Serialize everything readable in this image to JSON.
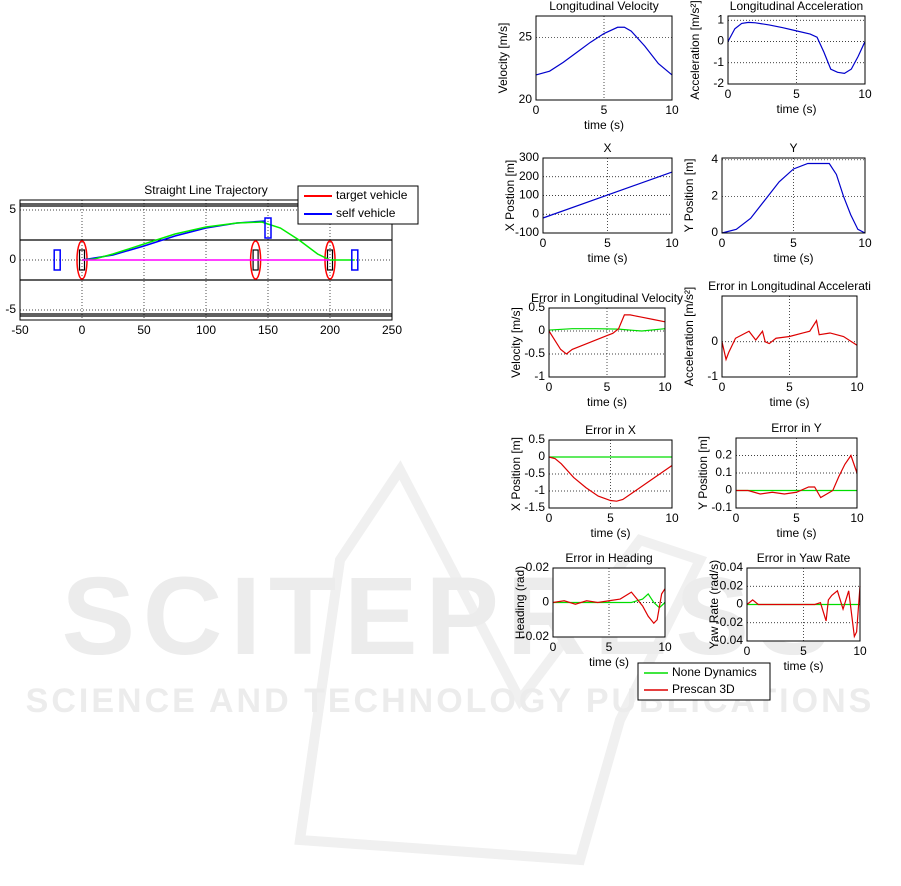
{
  "watermark": {
    "title": "SCITEPRESS",
    "subtitle": "SCIENCE AND TECHNOLOGY PUBLICATIONS"
  },
  "chart_data": [
    {
      "type": "line",
      "title": "Straight Line Trajectory",
      "xlim": [
        -50,
        250
      ],
      "ylim": [
        -6,
        6
      ],
      "xticks": [
        -50,
        0,
        50,
        100,
        150,
        200,
        250
      ],
      "yticks": [
        -5,
        0,
        5
      ],
      "grid": true,
      "legend": "upper right",
      "lane_lines": [
        5.6,
        5.4,
        2,
        -2,
        -5.4,
        -5.6
      ],
      "series": [
        {
          "name": "target vehicle",
          "color": "#ff0000",
          "marker": "ellipse",
          "x": [
            0,
            140,
            200
          ],
          "values": [
            0,
            0,
            0
          ]
        },
        {
          "name": "self vehicle",
          "color": "#0000ff",
          "x": [
            0,
            25,
            50,
            75,
            100,
            125,
            148
          ],
          "values": [
            0,
            0.5,
            1.4,
            2.4,
            3.2,
            3.7,
            3.9
          ]
        },
        {
          "color": "#00ee00",
          "x": [
            0,
            10,
            25,
            50,
            75,
            100,
            125,
            145,
            160,
            175,
            190,
            200,
            220
          ],
          "values": [
            0,
            0.1,
            0.6,
            1.6,
            2.6,
            3.3,
            3.7,
            3.8,
            3.2,
            2.0,
            0.6,
            0,
            0
          ]
        },
        {
          "color": "#ff00ff",
          "x": [
            0,
            200
          ],
          "values": [
            0,
            0
          ]
        },
        {
          "color": "#0000ff",
          "marker": "rect",
          "x": [
            -20,
            150,
            220
          ],
          "values": [
            0,
            3.2,
            0
          ]
        }
      ]
    },
    {
      "type": "line",
      "title": "Longitudinal Velocity",
      "x_label": "time (s)",
      "y_label": "Velocity [m/s]",
      "xlim": [
        0,
        10
      ],
      "ylim": [
        20,
        26.7
      ],
      "xticks": [
        0,
        5,
        10
      ],
      "yticks": [
        20,
        25
      ],
      "grid": true,
      "series": [
        {
          "color": "#0000cc",
          "x": [
            0,
            1,
            2,
            3,
            4,
            5,
            6,
            6.5,
            7,
            8,
            9,
            10
          ],
          "values": [
            22,
            22.3,
            23,
            23.8,
            24.6,
            25.3,
            25.8,
            25.8,
            25.5,
            24.3,
            22.9,
            22
          ]
        }
      ]
    },
    {
      "type": "line",
      "title": "Longitudinal Acceleration",
      "x_label": "time (s)",
      "y_label": "Acceleration [m/s²]",
      "xlim": [
        0,
        10
      ],
      "ylim": [
        -2,
        1.2
      ],
      "xticks": [
        0,
        5,
        10
      ],
      "yticks": [
        -2,
        -1,
        0,
        1
      ],
      "grid": true,
      "series": [
        {
          "color": "#0000cc",
          "x": [
            0,
            0.5,
            1,
            1.5,
            2,
            3,
            4,
            5,
            6,
            6.5,
            7,
            7.5,
            8,
            8.5,
            9,
            9.5,
            10
          ],
          "values": [
            0,
            0.6,
            0.85,
            0.9,
            0.88,
            0.78,
            0.65,
            0.5,
            0.35,
            0.2,
            -0.5,
            -1.3,
            -1.45,
            -1.5,
            -1.3,
            -0.7,
            0
          ]
        }
      ]
    },
    {
      "type": "line",
      "title": "X",
      "x_label": "time (s)",
      "y_label": "X Postion [m]",
      "xlim": [
        0,
        10
      ],
      "ylim": [
        -100,
        300
      ],
      "xticks": [
        0,
        5,
        10
      ],
      "yticks": [
        -100,
        0,
        100,
        200,
        300
      ],
      "grid": true,
      "series": [
        {
          "color": "#0000cc",
          "x": [
            0,
            10
          ],
          "values": [
            -20,
            225
          ]
        }
      ]
    },
    {
      "type": "line",
      "title": "Y",
      "x_label": "time (s)",
      "y_label": "Y Position [m]",
      "xlim": [
        0,
        10
      ],
      "ylim": [
        0,
        4.1
      ],
      "xticks": [
        0,
        5,
        10
      ],
      "yticks": [
        0,
        2,
        4
      ],
      "grid": true,
      "series": [
        {
          "color": "#0000cc",
          "x": [
            0,
            1,
            2,
            3,
            4,
            5,
            6,
            7,
            7.5,
            8,
            8.5,
            9,
            9.5,
            10
          ],
          "values": [
            0,
            0.2,
            0.8,
            1.8,
            2.8,
            3.5,
            3.8,
            3.8,
            3.8,
            3.2,
            2,
            1,
            0.2,
            0
          ]
        }
      ]
    },
    {
      "type": "line",
      "title": "Error in Longitudinal Velocity",
      "x_label": "time (s)",
      "y_label": "Velocity [m/s]",
      "xlim": [
        0,
        10
      ],
      "ylim": [
        -1,
        0.5
      ],
      "xticks": [
        0,
        5,
        10
      ],
      "yticks": [
        -1,
        -0.5,
        0,
        0.5
      ],
      "grid": true,
      "series": [
        {
          "name": "None Dynamics",
          "color": "#00dd00",
          "x": [
            0,
            2,
            4,
            6,
            8,
            10
          ],
          "values": [
            0.02,
            0.05,
            0.05,
            0.04,
            0,
            0.05
          ]
        },
        {
          "name": "Prescan 3D",
          "color": "#dd0000",
          "x": [
            0,
            0.5,
            1,
            1.5,
            2,
            3,
            4,
            5,
            5.5,
            6,
            6.5,
            7,
            8,
            9,
            10
          ],
          "values": [
            0,
            -0.2,
            -0.4,
            -0.5,
            -0.4,
            -0.3,
            -0.2,
            -0.1,
            -0.05,
            0.05,
            0.35,
            0.35,
            0.3,
            0.25,
            0.2
          ]
        }
      ]
    },
    {
      "type": "line",
      "title": "Error in Longitudinal Accelerati",
      "x_label": "time (s)",
      "y_label": "Acceleration [m/s²]",
      "xlim": [
        0,
        10
      ],
      "ylim": [
        -1,
        1.3
      ],
      "xticks": [
        0,
        5,
        10
      ],
      "yticks": [
        -1,
        0
      ],
      "grid": true,
      "series": [
        {
          "name": "Prescan 3D",
          "color": "#dd0000",
          "x": [
            0,
            0.3,
            0.5,
            1,
            1.5,
            2,
            2.5,
            3,
            3.2,
            3.5,
            4,
            5,
            6,
            6.5,
            7,
            7.2,
            8,
            9,
            10
          ],
          "values": [
            0,
            -0.5,
            -0.3,
            0.1,
            0.2,
            0.3,
            0.05,
            0.3,
            0,
            -0.05,
            0.1,
            0.15,
            0.25,
            0.3,
            0.6,
            0.2,
            0.25,
            0.15,
            -0.1
          ]
        }
      ]
    },
    {
      "type": "line",
      "title": "Error in X",
      "x_label": "time (s)",
      "y_label": "X Position [m]",
      "xlim": [
        0,
        10
      ],
      "ylim": [
        -1.5,
        0.5
      ],
      "xticks": [
        0,
        5,
        10
      ],
      "yticks": [
        -1.5,
        -1,
        -0.5,
        0,
        0.5
      ],
      "grid": true,
      "series": [
        {
          "name": "None Dynamics",
          "color": "#00dd00",
          "x": [
            0,
            10
          ],
          "values": [
            0,
            0
          ]
        },
        {
          "name": "Prescan 3D",
          "color": "#dd0000",
          "x": [
            0,
            0.5,
            1,
            2,
            3,
            4,
            5,
            5.5,
            6,
            7,
            8,
            9,
            10
          ],
          "values": [
            0,
            -0.05,
            -0.2,
            -0.6,
            -0.9,
            -1.15,
            -1.28,
            -1.3,
            -1.25,
            -1.0,
            -0.75,
            -0.5,
            -0.25
          ]
        }
      ]
    },
    {
      "type": "line",
      "title": "Error in Y",
      "x_label": "time (s)",
      "y_label": "Y Position [m]",
      "xlim": [
        0,
        10
      ],
      "ylim": [
        -0.1,
        0.3
      ],
      "xticks": [
        0,
        5,
        10
      ],
      "yticks": [
        -0.1,
        0,
        0.1,
        0.2
      ],
      "grid": true,
      "series": [
        {
          "name": "None Dynamics",
          "color": "#00dd00",
          "x": [
            0,
            10
          ],
          "values": [
            0,
            0
          ]
        },
        {
          "name": "Prescan 3D",
          "color": "#dd0000",
          "x": [
            0,
            1,
            2,
            3,
            4,
            5,
            6,
            6.5,
            7,
            7.5,
            8,
            8.5,
            9,
            9.5,
            10
          ],
          "values": [
            0,
            0,
            -0.02,
            -0.01,
            -0.02,
            -0.01,
            0.02,
            0.02,
            -0.04,
            -0.02,
            0,
            0.08,
            0.15,
            0.2,
            0.1
          ]
        }
      ]
    },
    {
      "type": "line",
      "title": "Error in Heading",
      "x_label": "time (s)",
      "y_label": "Heading (rad)",
      "xlim": [
        0,
        10
      ],
      "ylim": [
        -0.02,
        0.02
      ],
      "xticks": [
        0,
        5,
        10
      ],
      "yticks": [
        -0.02,
        0,
        0.02
      ],
      "grid": true,
      "series": [
        {
          "name": "None Dynamics",
          "color": "#00dd00",
          "x": [
            0,
            2,
            4,
            6,
            7,
            8,
            8.5,
            9,
            9.5,
            10
          ],
          "values": [
            0,
            0,
            0,
            0,
            0,
            0.002,
            0.005,
            0,
            -0.003,
            0
          ]
        },
        {
          "name": "Prescan 3D",
          "color": "#dd0000",
          "x": [
            0,
            1,
            2,
            3,
            4,
            5,
            6,
            7,
            7.5,
            8,
            8.5,
            9,
            9.3,
            9.7,
            10
          ],
          "values": [
            0,
            0.001,
            -0.001,
            0.001,
            0,
            0.001,
            0.002,
            0.006,
            0.002,
            -0.002,
            -0.008,
            -0.012,
            -0.01,
            0.005,
            0.008
          ]
        }
      ]
    },
    {
      "type": "line",
      "title": "Error in Yaw Rate",
      "x_label": "time (s)",
      "y_label": "Yaw Rate (rad/s)",
      "xlim": [
        0,
        10
      ],
      "ylim": [
        -0.04,
        0.04
      ],
      "xticks": [
        0,
        5,
        10
      ],
      "yticks": [
        -0.04,
        -0.02,
        0,
        0.02,
        0.04
      ],
      "grid": true,
      "legend": "below",
      "series": [
        {
          "name": "None Dynamics",
          "color": "#00dd00",
          "x": [
            0,
            10
          ],
          "values": [
            0,
            0
          ]
        },
        {
          "name": "Prescan 3D",
          "color": "#dd0000",
          "x": [
            0,
            0.5,
            1,
            2,
            3,
            4,
            5,
            6,
            6.5,
            7,
            7.2,
            7.5,
            8,
            8.5,
            9,
            9.5,
            9.7,
            10
          ],
          "values": [
            0,
            0.005,
            0,
            0,
            0,
            0,
            0,
            0,
            0.002,
            -0.018,
            0.005,
            0.01,
            0.015,
            -0.005,
            0.015,
            -0.035,
            -0.03,
            0.02
          ]
        }
      ]
    }
  ]
}
